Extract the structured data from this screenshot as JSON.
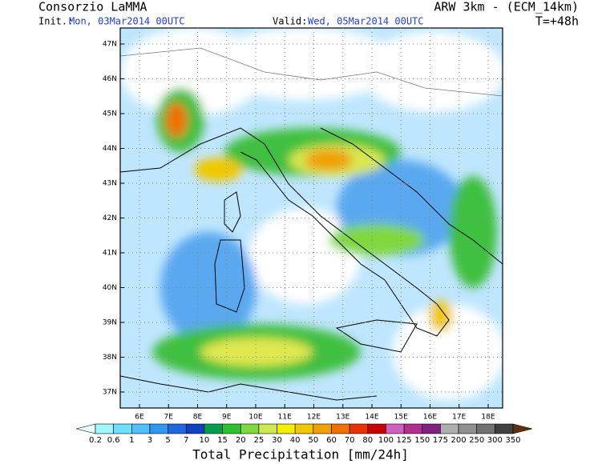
{
  "header": {
    "title": "Consorzio LaMMA",
    "model": "ARW 3km - (ECM_14km)",
    "init_label": "Init.:",
    "init_time": "Mon, 03Mar2014 00UTC",
    "valid_label": "Valid:",
    "valid_time": "Wed, 05Mar2014 00UTC",
    "step": "T=+48h"
  },
  "map": {
    "lat_labels": [
      "47N",
      "46N",
      "45N",
      "44N",
      "43N",
      "42N",
      "41N",
      "40N",
      "39N",
      "38N",
      "37N"
    ],
    "lon_labels": [
      "6E",
      "7E",
      "8E",
      "9E",
      "10E",
      "11E",
      "12E",
      "13E",
      "14E",
      "15E",
      "16E",
      "17E",
      "18E"
    ]
  },
  "colorbar": {
    "title": "Total Precipitation [mm/24h]",
    "labels": [
      0.2,
      0.6,
      1,
      3,
      5,
      7,
      10,
      15,
      20,
      25,
      30,
      40,
      50,
      60,
      70,
      80,
      100,
      125,
      150,
      175,
      200,
      250,
      300,
      350
    ],
    "colors": [
      "#e8ffff",
      "#a0f8ff",
      "#70e0ff",
      "#50c0ff",
      "#3098f0",
      "#2068e0",
      "#1040c0",
      "#00a050",
      "#30c030",
      "#80d840",
      "#d0e850",
      "#f0f000",
      "#f0c800",
      "#f0a000",
      "#f07000",
      "#e83000",
      "#c80000",
      "#d060c0",
      "#b03090",
      "#802080",
      "#b0b0b0",
      "#909090",
      "#707070",
      "#404040",
      "#603010"
    ]
  }
}
